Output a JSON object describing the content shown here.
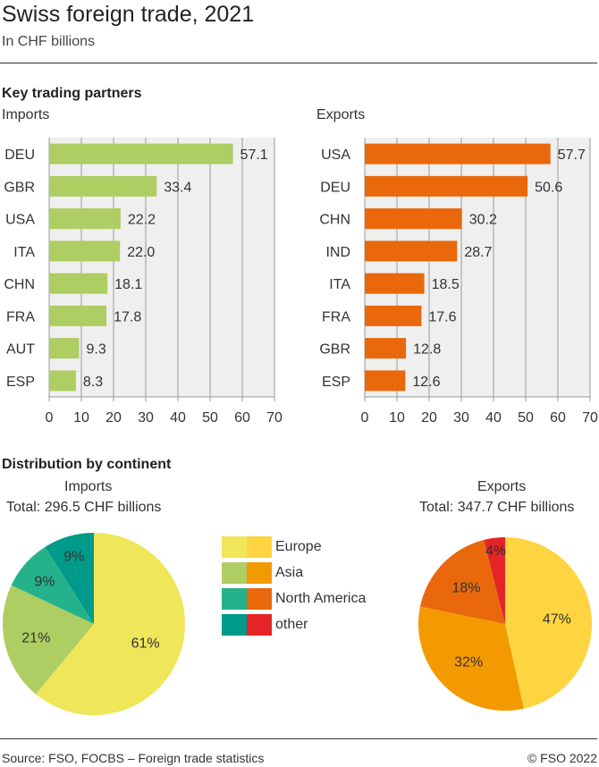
{
  "header": {
    "title": "Swiss foreign trade, 2021",
    "subtitle": "In CHF billions"
  },
  "section_partners": "Key trading partners",
  "section_continent": "Distribution by continent",
  "chart_data": [
    {
      "type": "bar",
      "orientation": "horizontal",
      "title": "Imports",
      "categories": [
        "DEU",
        "GBR",
        "USA",
        "ITA",
        "CHN",
        "FRA",
        "AUT",
        "ESP"
      ],
      "values": [
        57.1,
        33.4,
        22.2,
        22.0,
        18.1,
        17.8,
        9.3,
        8.3
      ],
      "xlim": [
        0,
        70
      ],
      "ticks": [
        0,
        10,
        20,
        30,
        40,
        50,
        60,
        70
      ],
      "grid": true,
      "color": "#aecd62"
    },
    {
      "type": "bar",
      "orientation": "horizontal",
      "title": "Exports",
      "categories": [
        "USA",
        "DEU",
        "CHN",
        "IND",
        "ITA",
        "FRA",
        "GBR",
        "ESP"
      ],
      "values": [
        57.7,
        50.6,
        30.2,
        28.7,
        18.5,
        17.6,
        12.8,
        12.6
      ],
      "xlim": [
        0,
        70
      ],
      "ticks": [
        0,
        10,
        20,
        30,
        40,
        50,
        60,
        70
      ],
      "grid": true,
      "color": "#e9680c"
    },
    {
      "type": "pie",
      "title": "Imports",
      "subtitle": "Total: 296.5 CHF billions",
      "categories": [
        "Europe",
        "Asia",
        "North America",
        "other"
      ],
      "values": [
        61,
        21,
        9,
        9
      ],
      "labels": [
        "61%",
        "21%",
        "9%",
        "9%"
      ],
      "colors": [
        "#efe65a",
        "#aecd62",
        "#24b28b",
        "#009a8a"
      ]
    },
    {
      "type": "pie",
      "title": "Exports",
      "subtitle": "Total: 347.7 CHF billions",
      "categories": [
        "Europe",
        "Asia",
        "North America",
        "other"
      ],
      "values": [
        47,
        32,
        18,
        4
      ],
      "labels": [
        "47%",
        "32%",
        "18%",
        "4%"
      ],
      "colors": [
        "#fed540",
        "#f39a00",
        "#e9680c",
        "#e52427"
      ]
    }
  ],
  "legend": [
    "Europe",
    "Asia",
    "North America",
    "other"
  ],
  "footer": {
    "source": "Source: FSO, FOCBS – Foreign trade statistics",
    "copyright": "© FSO 2022"
  }
}
